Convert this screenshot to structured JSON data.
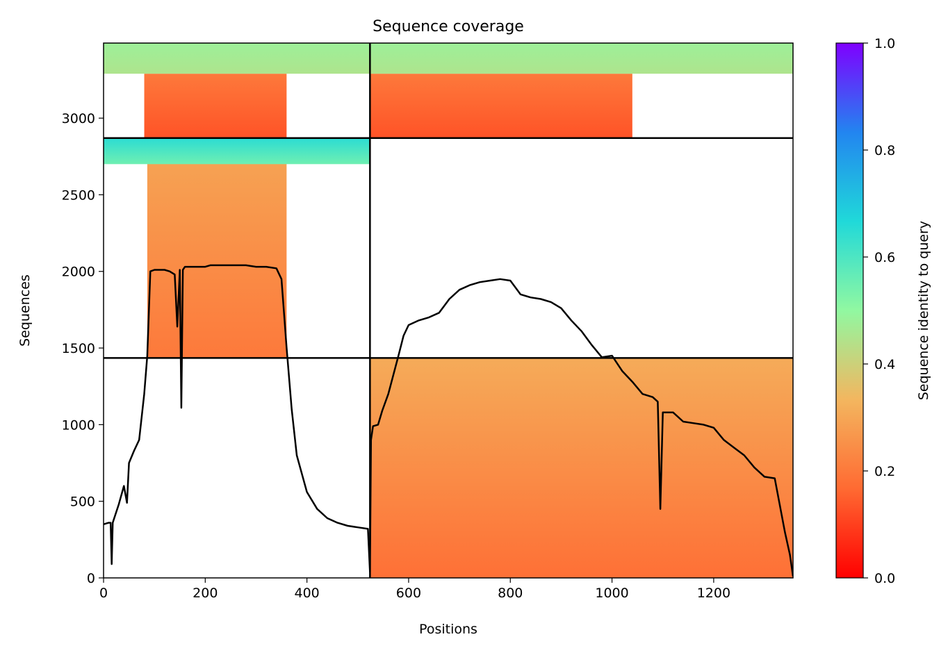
{
  "chart_data": {
    "type": "heatmap",
    "title": "Sequence coverage",
    "xlabel": "Positions",
    "ylabel": "Sequences",
    "xlim": [
      0,
      1356
    ],
    "ylim": [
      0,
      3490
    ],
    "xticks": [
      0,
      200,
      400,
      600,
      800,
      1000,
      1200
    ],
    "yticks": [
      0,
      500,
      1000,
      1500,
      2000,
      2500,
      3000
    ],
    "colorbar": {
      "label": "Sequence identity to query",
      "range": [
        0.0,
        1.0
      ],
      "ticks": [
        "0.0",
        "0.2",
        "0.4",
        "0.6",
        "0.8",
        "1.0"
      ],
      "colormap": [
        "#ff0000",
        "#ff6a32",
        "#f3b65f",
        "#91f8a1",
        "#20d9d9",
        "#2285f0",
        "#7f00ff"
      ]
    },
    "chain_boundaries": {
      "x": [
        524
      ],
      "y": [
        1435,
        2870
      ]
    },
    "blocks": [
      {
        "x": [
          86,
          360
        ],
        "y": [
          1435,
          2870
        ],
        "identity": [
          0.2,
          0.3
        ]
      },
      {
        "x": [
          524,
          1356
        ],
        "y": [
          0,
          1435
        ],
        "identity": [
          0.18,
          0.31
        ]
      },
      {
        "x": [
          0,
          524
        ],
        "y": [
          2700,
          2870
        ],
        "identity": [
          0.55,
          0.65
        ]
      },
      {
        "x": [
          80,
          360
        ],
        "y": [
          2870,
          3290
        ],
        "identity": [
          0.13,
          0.2
        ]
      },
      {
        "x": [
          0,
          524
        ],
        "y": [
          3290,
          3490
        ],
        "identity": [
          0.45,
          0.48
        ]
      },
      {
        "x": [
          524,
          1040
        ],
        "y": [
          2870,
          3290
        ],
        "identity": [
          0.13,
          0.2
        ]
      },
      {
        "x": [
          524,
          1356
        ],
        "y": [
          3290,
          3490
        ],
        "identity": [
          0.45,
          0.48
        ]
      }
    ],
    "coverage_line": {
      "x": [
        0,
        10,
        14,
        16,
        18,
        20,
        30,
        40,
        46,
        50,
        60,
        70,
        80,
        86,
        92,
        100,
        120,
        130,
        140,
        145,
        150,
        153,
        156,
        160,
        180,
        200,
        210,
        220,
        240,
        260,
        280,
        300,
        320,
        340,
        350,
        360,
        370,
        380,
        400,
        420,
        440,
        460,
        480,
        500,
        520,
        524,
        526,
        530,
        540,
        548,
        560,
        580,
        590,
        600,
        620,
        640,
        660,
        680,
        700,
        720,
        740,
        760,
        780,
        800,
        820,
        840,
        860,
        880,
        900,
        920,
        940,
        960,
        980,
        1000,
        1020,
        1040,
        1060,
        1080,
        1090,
        1095,
        1100,
        1120,
        1140,
        1160,
        1180,
        1200,
        1220,
        1240,
        1260,
        1280,
        1300,
        1320,
        1340,
        1350,
        1356
      ],
      "y": [
        350,
        360,
        360,
        90,
        360,
        380,
        480,
        600,
        490,
        750,
        830,
        900,
        1200,
        1450,
        2000,
        2010,
        2010,
        2000,
        1980,
        1640,
        2010,
        1110,
        2010,
        2030,
        2030,
        2030,
        2040,
        2040,
        2040,
        2040,
        2040,
        2030,
        2030,
        2020,
        1950,
        1500,
        1100,
        800,
        560,
        450,
        390,
        360,
        340,
        330,
        320,
        40,
        900,
        990,
        1000,
        1090,
        1200,
        1450,
        1580,
        1650,
        1680,
        1700,
        1730,
        1820,
        1880,
        1910,
        1930,
        1940,
        1950,
        1940,
        1850,
        1830,
        1820,
        1800,
        1760,
        1680,
        1610,
        1520,
        1440,
        1450,
        1350,
        1280,
        1200,
        1180,
        1150,
        450,
        1080,
        1080,
        1020,
        1010,
        1000,
        980,
        900,
        850,
        800,
        720,
        660,
        650,
        300,
        150,
        10
      ]
    }
  }
}
